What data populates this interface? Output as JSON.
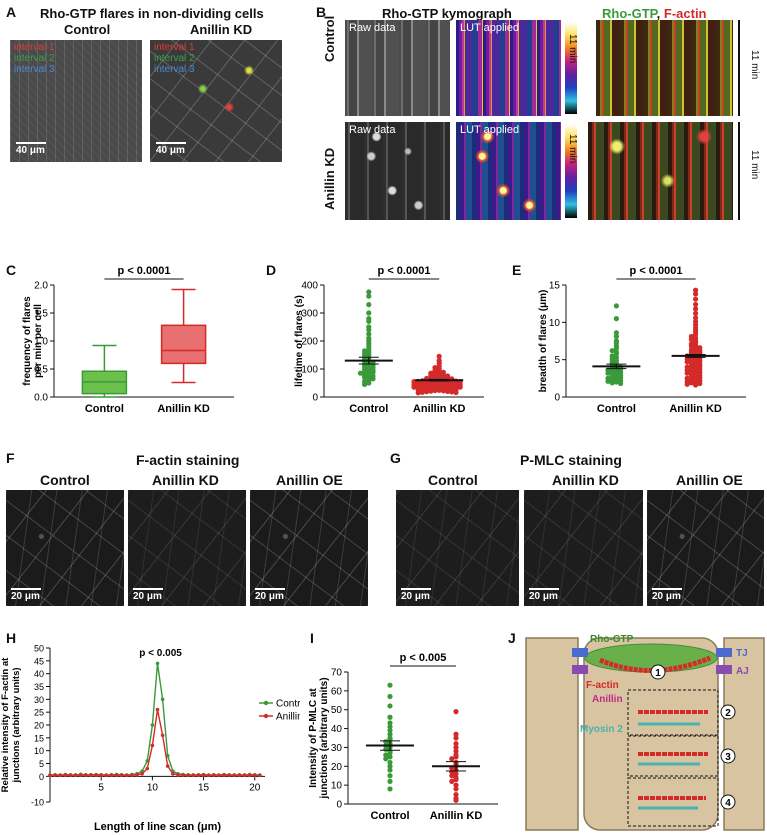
{
  "panels": {
    "A": {
      "letter": "A",
      "title": "Rho-GTP flares in non-dividing cells",
      "control": "Control",
      "kd": "Anillin KD",
      "intervals": [
        "interval 1",
        "interval 2",
        "interval 3"
      ],
      "scale": "40 μm"
    },
    "B": {
      "letter": "B",
      "title": "Rho-GTP kymograph",
      "merge_title_1": "Rho-GTP",
      "merge_title_sep": ", ",
      "merge_title_2": "F-actin",
      "row_control": "Control",
      "row_kd": "Anillin KD",
      "raw": "Raw data",
      "lut": "LUT applied",
      "time": "11 min"
    },
    "C": {
      "letter": "C",
      "ylabel": "frequency of flares per min per cell",
      "pvalue": "p < 0.0001"
    },
    "D": {
      "letter": "D",
      "ylabel": "lifetime of flares (s)",
      "pvalue": "p < 0.0001"
    },
    "E": {
      "letter": "E",
      "ylabel": "breadth of flares (μm)",
      "pvalue": "p < 0.0001"
    },
    "F": {
      "letter": "F",
      "title": "F-actin staining",
      "cols": [
        "Control",
        "Anillin KD",
        "Anillin OE"
      ],
      "scale": "20 μm"
    },
    "G": {
      "letter": "G",
      "title": "P-MLC staining",
      "cols": [
        "Control",
        "Anillin KD",
        "Anillin OE"
      ],
      "scale": "20 μm"
    },
    "H": {
      "letter": "H",
      "ylabel": "Relative intensity of F-actin at junctions (arbitrary units)",
      "xlabel": "Length of line scan (μm)",
      "pvalue": "p  < 0.005"
    },
    "I": {
      "letter": "I",
      "ylabel": "Intensity of P-MLC at junctions (arbitrary units)",
      "pvalue": "p < 0.005"
    },
    "J": {
      "letter": "J",
      "labels": {
        "rho": "Rho-GTP",
        "tj": "TJ",
        "aj": "AJ",
        "factin": "F-actin",
        "anillin": "Anillin",
        "myosin": "Myosin 2"
      },
      "steps": [
        "1",
        "2",
        "3",
        "4"
      ]
    }
  },
  "colors": {
    "control": "#3a9a3a",
    "kd": "#d42a2a",
    "cell": "#d8c4a0",
    "rho": "#6ab04a"
  },
  "chart_data": [
    {
      "panel": "C",
      "type": "box",
      "categories": [
        "Control",
        "Anillin KD"
      ],
      "ylim": [
        0,
        2.0
      ],
      "yticks": [
        0.0,
        0.5,
        1.0,
        1.5,
        2.0
      ],
      "boxes": [
        {
          "name": "Control",
          "min": 0.0,
          "q1": 0.06,
          "median": 0.27,
          "q3": 0.46,
          "max": 0.92
        },
        {
          "name": "Anillin KD",
          "min": 0.26,
          "q1": 0.6,
          "median": 0.83,
          "q3": 1.28,
          "max": 1.92
        }
      ]
    },
    {
      "panel": "D",
      "type": "scatter",
      "categories": [
        "Control",
        "Anillin KD"
      ],
      "ylim": [
        0,
        400
      ],
      "yticks": [
        0,
        100,
        200,
        300,
        400
      ],
      "groups": [
        {
          "name": "Control",
          "mean": 130,
          "sem": 12,
          "values": [
            375,
            360,
            330,
            300,
            280,
            270,
            250,
            240,
            225,
            210,
            200,
            190,
            180,
            170,
            165,
            160,
            155,
            150,
            145,
            140,
            135,
            130,
            128,
            125,
            120,
            118,
            115,
            110,
            108,
            105,
            100,
            98,
            95,
            92,
            90,
            88,
            85,
            80,
            78,
            75,
            72,
            70,
            65,
            60,
            55,
            50,
            45
          ]
        },
        {
          "name": "Anillin KD",
          "mean": 60,
          "sem": 3,
          "values": [
            145,
            130,
            120,
            110,
            105,
            100,
            95,
            92,
            90,
            88,
            85,
            82,
            80,
            78,
            76,
            75,
            74,
            72,
            70,
            70,
            68,
            66,
            65,
            64,
            63,
            62,
            61,
            60,
            60,
            59,
            58,
            57,
            56,
            55,
            55,
            54,
            53,
            52,
            51,
            50,
            50,
            49,
            48,
            47,
            46,
            45,
            45,
            44,
            43,
            42,
            41,
            40,
            40,
            39,
            38,
            37,
            36,
            35,
            35,
            34,
            33,
            32,
            31,
            30,
            30,
            28,
            27,
            26,
            25,
            24,
            23,
            22,
            21,
            20,
            19,
            18,
            17,
            16,
            15
          ]
        }
      ]
    },
    {
      "panel": "E",
      "type": "scatter",
      "categories": [
        "Control",
        "Anillin KD"
      ],
      "ylim": [
        0,
        15
      ],
      "yticks": [
        0,
        5,
        10,
        15
      ],
      "groups": [
        {
          "name": "Control",
          "mean": 4.1,
          "sem": 0.3,
          "values": [
            12.2,
            10.5,
            8.6,
            8.1,
            7.5,
            7.2,
            6.8,
            6.5,
            6.2,
            6.0,
            5.8,
            5.5,
            5.3,
            5.1,
            4.9,
            4.7,
            4.5,
            4.4,
            4.2,
            4.1,
            4.0,
            3.9,
            3.8,
            3.7,
            3.6,
            3.5,
            3.4,
            3.3,
            3.2,
            3.1,
            3.0,
            2.9,
            2.8,
            2.7,
            2.6,
            2.5,
            2.4,
            2.3,
            2.2,
            2.1,
            2.0,
            1.9,
            1.8
          ]
        },
        {
          "name": "Anillin KD",
          "mean": 5.5,
          "sem": 0.2,
          "values": [
            14.3,
            13.8,
            13.1,
            12.4,
            11.8,
            11.2,
            10.6,
            10.1,
            9.7,
            9.3,
            9.0,
            8.7,
            8.4,
            8.1,
            7.9,
            7.7,
            7.5,
            7.3,
            7.1,
            6.9,
            6.8,
            6.6,
            6.5,
            6.3,
            6.2,
            6.1,
            6.0,
            5.9,
            5.8,
            5.7,
            5.6,
            5.5,
            5.4,
            5.3,
            5.2,
            5.1,
            5.0,
            4.9,
            4.8,
            4.7,
            4.6,
            4.5,
            4.4,
            4.3,
            4.2,
            4.1,
            4.0,
            3.9,
            3.8,
            3.7,
            3.6,
            3.5,
            3.4,
            3.3,
            3.2,
            3.1,
            3.0,
            2.9,
            2.8,
            2.7,
            2.6,
            2.5,
            2.4,
            2.3,
            2.2,
            2.1,
            2.0,
            1.9,
            1.8,
            1.7,
            1.6
          ]
        }
      ]
    },
    {
      "panel": "H",
      "type": "line",
      "xlim": [
        0,
        21
      ],
      "xticks": [
        5,
        10,
        15,
        20
      ],
      "ylim": [
        -10,
        50
      ],
      "yticks": [
        -10,
        0,
        5,
        10,
        15,
        20,
        25,
        30,
        35,
        40,
        45,
        50
      ],
      "x": [
        0,
        0.5,
        1,
        1.5,
        2,
        2.5,
        3,
        3.5,
        4,
        4.5,
        5,
        5.5,
        6,
        6.5,
        7,
        7.5,
        8,
        8.5,
        9,
        9.5,
        10,
        10.5,
        11,
        11.5,
        12,
        12.5,
        13,
        13.5,
        14,
        14.5,
        15,
        15.5,
        16,
        16.5,
        17,
        17.5,
        18,
        18.5,
        19,
        19.5,
        20,
        20.5
      ],
      "series": [
        {
          "name": "Control",
          "color": "#3a9a3a",
          "values": [
            0.5,
            0.6,
            0.5,
            0.7,
            0.6,
            0.5,
            0.8,
            0.6,
            0.5,
            0.7,
            0.6,
            0.5,
            0.6,
            0.7,
            0.6,
            0.5,
            0.7,
            1.0,
            2.0,
            6.0,
            20.0,
            44.0,
            30.0,
            8.0,
            2.0,
            1.0,
            0.7,
            0.6,
            0.5,
            0.6,
            0.7,
            0.5,
            0.6,
            0.5,
            0.7,
            0.6,
            0.5,
            0.6,
            0.5,
            0.7,
            0.6,
            0.5
          ]
        },
        {
          "name": "Anillin KD",
          "color": "#d42a2a",
          "values": [
            0.4,
            0.5,
            0.4,
            0.5,
            0.4,
            0.5,
            0.4,
            0.5,
            0.6,
            0.4,
            0.5,
            0.4,
            0.5,
            0.4,
            0.5,
            0.4,
            0.5,
            0.6,
            1.0,
            3.0,
            12.0,
            26.0,
            16.0,
            4.0,
            1.0,
            0.6,
            0.5,
            0.4,
            0.5,
            0.4,
            0.5,
            0.4,
            0.5,
            0.4,
            0.5,
            0.4,
            0.5,
            0.4,
            0.5,
            0.4,
            0.5,
            0.4
          ]
        }
      ]
    },
    {
      "panel": "I",
      "type": "scatter",
      "categories": [
        "Control",
        "Anillin KD"
      ],
      "ylim": [
        0,
        70
      ],
      "yticks": [
        0,
        10,
        20,
        30,
        40,
        50,
        60,
        70
      ],
      "groups": [
        {
          "name": "Control",
          "mean": 31,
          "sem": 2.5,
          "values": [
            63,
            57,
            52,
            46,
            43,
            41,
            39,
            37,
            35,
            34,
            33,
            32,
            31,
            30,
            29,
            28,
            27,
            26,
            25,
            24,
            22,
            20,
            18,
            15,
            12,
            8
          ]
        },
        {
          "name": "Anillin KD",
          "mean": 20,
          "sem": 2.5,
          "values": [
            49,
            37,
            35,
            32,
            30,
            28,
            26,
            25,
            24,
            22,
            21,
            20,
            19,
            18,
            17,
            16,
            15,
            14,
            13,
            12,
            10,
            8,
            5,
            3,
            2
          ]
        }
      ]
    }
  ]
}
